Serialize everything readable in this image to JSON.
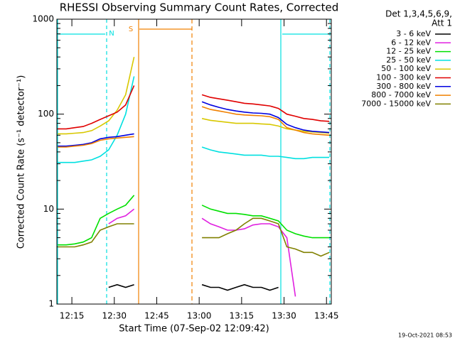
{
  "chart_data": {
    "type": "line",
    "title": "RHESSI Observing Summary Count Rates, Corrected",
    "xlabel": "Start Time (07-Sep-02 12:09:42)",
    "ylabel": "Corrected Count Rate (s⁻¹ detector⁻¹)",
    "legend_title": [
      "Det 1,3,4,5,6,9,",
      "Att 1"
    ],
    "footer": "19-Oct-2021 08:53",
    "annotations": {
      "night": "N",
      "saa": "S"
    },
    "log_y": true,
    "legend": "outside-right",
    "xlim": [
      729.7,
      826.7
    ],
    "xticks": [
      {
        "value": 735,
        "label": "12:15"
      },
      {
        "value": 750,
        "label": "12:30"
      },
      {
        "value": 765,
        "label": "12:45"
      },
      {
        "value": 780,
        "label": "13:00"
      },
      {
        "value": 795,
        "label": "13:15"
      },
      {
        "value": 810,
        "label": "13:30"
      },
      {
        "value": 825,
        "label": "13:45"
      }
    ],
    "ylim": [
      1,
      1000
    ],
    "yticks": [
      1,
      10,
      100,
      1000
    ],
    "x": [
      730,
      733,
      736,
      739,
      742,
      745,
      748,
      751,
      754,
      757,
      760,
      763,
      766,
      769,
      772,
      775,
      778,
      781,
      784,
      787,
      790,
      793,
      796,
      799,
      802,
      805,
      808,
      811,
      814,
      817,
      820,
      823,
      826
    ],
    "series": [
      {
        "name": "3 - 6 keV",
        "color": "#000000",
        "values": [
          null,
          null,
          null,
          null,
          null,
          null,
          1.5,
          1.6,
          1.5,
          1.6,
          null,
          null,
          null,
          null,
          null,
          null,
          null,
          1.6,
          1.5,
          1.5,
          1.4,
          1.5,
          1.6,
          1.5,
          1.5,
          1.4,
          1.5,
          null,
          null,
          null,
          null,
          null,
          null
        ]
      },
      {
        "name": "6 - 12 keV",
        "color": "#e020e0",
        "values": [
          null,
          null,
          null,
          null,
          null,
          null,
          7,
          8,
          8.5,
          10,
          null,
          null,
          null,
          null,
          null,
          null,
          null,
          8,
          7,
          6.5,
          6,
          6,
          6.2,
          6.8,
          7,
          7,
          6.5,
          5,
          1.2,
          null,
          null,
          null,
          null
        ]
      },
      {
        "name": "12 - 25 keV",
        "color": "#00e000",
        "values": [
          4.2,
          4.2,
          4.3,
          4.5,
          5,
          8,
          9,
          10,
          11,
          14,
          null,
          null,
          null,
          null,
          null,
          null,
          null,
          11,
          10,
          9.5,
          9,
          9,
          8.8,
          8.5,
          8.5,
          8,
          7.5,
          6,
          5.5,
          5.2,
          5,
          5,
          5
        ]
      },
      {
        "name": "25 - 50 keV",
        "color": "#00e0e0",
        "values": [
          31,
          31,
          31,
          32,
          33,
          36,
          42,
          60,
          100,
          250,
          null,
          null,
          null,
          null,
          null,
          null,
          null,
          45,
          42,
          40,
          39,
          38,
          37,
          37,
          37,
          36,
          36,
          35,
          34,
          34,
          35,
          35,
          35
        ]
      },
      {
        "name": "50 - 100 keV",
        "color": "#d8c800",
        "values": [
          62,
          62,
          63,
          64,
          67,
          75,
          85,
          110,
          160,
          400,
          null,
          null,
          null,
          null,
          null,
          null,
          null,
          90,
          86,
          84,
          82,
          80,
          80,
          80,
          79,
          78,
          75,
          70,
          68,
          66,
          65,
          64,
          63
        ]
      },
      {
        "name": "100 - 300 keV",
        "color": "#e00000",
        "values": [
          70,
          70,
          72,
          74,
          80,
          88,
          96,
          105,
          125,
          200,
          null,
          null,
          null,
          null,
          null,
          null,
          null,
          160,
          150,
          145,
          140,
          135,
          130,
          128,
          125,
          122,
          115,
          100,
          95,
          90,
          88,
          85,
          84
        ]
      },
      {
        "name": "300 - 800 keV",
        "color": "#0000e0",
        "values": [
          46,
          46,
          47,
          48,
          50,
          55,
          57,
          58,
          60,
          62,
          null,
          null,
          null,
          null,
          null,
          null,
          null,
          135,
          125,
          118,
          112,
          108,
          105,
          103,
          102,
          100,
          92,
          78,
          72,
          68,
          66,
          65,
          64
        ]
      },
      {
        "name": "800 - 7000 keV",
        "color": "#f08000",
        "values": [
          45,
          45,
          46,
          47,
          49,
          53,
          55,
          56,
          57,
          58,
          null,
          null,
          null,
          null,
          null,
          null,
          null,
          120,
          112,
          108,
          104,
          100,
          98,
          97,
          96,
          94,
          88,
          72,
          68,
          64,
          62,
          61,
          60
        ]
      },
      {
        "name": "7000 - 15000 keV",
        "color": "#808000",
        "values": [
          4,
          4,
          4,
          4.2,
          4.5,
          6,
          6.5,
          7,
          7,
          7,
          null,
          null,
          null,
          null,
          null,
          null,
          null,
          5,
          5,
          5,
          5.5,
          6,
          7,
          8,
          8,
          7.5,
          7,
          4,
          3.8,
          3.5,
          3.5,
          3.2,
          3.5
        ]
      }
    ]
  }
}
